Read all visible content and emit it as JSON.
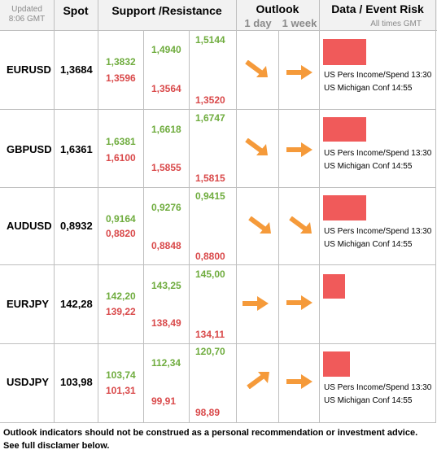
{
  "header": {
    "updated_label": "Updated",
    "updated_time": "8:06 GMT",
    "spot": "Spot",
    "sr": "Support /Resistance",
    "outlook": "Outlook",
    "day": "1 day",
    "week": "1 week",
    "data": "Data / Event Risk",
    "times": "All times GMT"
  },
  "colors": {
    "green": "#6fac3e",
    "red": "#d9494a",
    "arrow": "#f59a3a",
    "bar": "#f05a5a",
    "header_bg": "#f2f2f2"
  },
  "rows": [
    {
      "pair": "EURUSD",
      "spot": "1,3684",
      "s1": "1,3832",
      "s1b": "1,3596",
      "s2": "1,4940",
      "s2b": "1,3564",
      "s3": "1,5144",
      "s3b": "1,3520",
      "day": "down-right",
      "week": "right",
      "risk_level": 0.9,
      "events": [
        "US Pers Income/Spend 13:30",
        "US Michigan Conf 14:55"
      ]
    },
    {
      "pair": "GBPUSD",
      "spot": "1,6361",
      "s1": "1,6381",
      "s1b": "1,6100",
      "s2": "1,6618",
      "s2b": "1,5855",
      "s3": "1,6747",
      "s3b": "1,5815",
      "day": "down-right",
      "week": "right",
      "risk_level": 0.9,
      "events": [
        "US Pers Income/Spend 13:30",
        "US Michigan Conf 14:55"
      ]
    },
    {
      "pair": "AUDUSD",
      "spot": "0,8932",
      "s1": "0,9164",
      "s1b": "0,8820",
      "s2": "0,9276",
      "s2b": "0,8848",
      "s3": "0,9415",
      "s3b": "0,8800",
      "day": "down-right",
      "week": "down-right",
      "risk_level": 0.9,
      "events": [
        "US Pers Income/Spend 13:30",
        "US Michigan Conf 14:55"
      ]
    },
    {
      "pair": "EURJPY",
      "spot": "142,28",
      "s1": "142,20",
      "s1b": "139,22",
      "s2": "143,25",
      "s2b": "138,49",
      "s3": "145,00",
      "s3b": "134,11",
      "day": "right",
      "week": "right",
      "risk_level": 0.5,
      "events": []
    },
    {
      "pair": "USDJPY",
      "spot": "103,98",
      "s1": "103,74",
      "s1b": "101,31",
      "s2": "112,34",
      "s2b": "99,91",
      "s3": "120,70",
      "s3b": "98,89",
      "day": "up-right",
      "week": "right",
      "risk_level": 0.6,
      "events": [
        "US Pers Income/Spend 13:30",
        "US Michigan Conf 14:55"
      ]
    }
  ],
  "footer": "Outlook indicators should not be construed as a personal recommendation or investment advice. See full disclamer below."
}
